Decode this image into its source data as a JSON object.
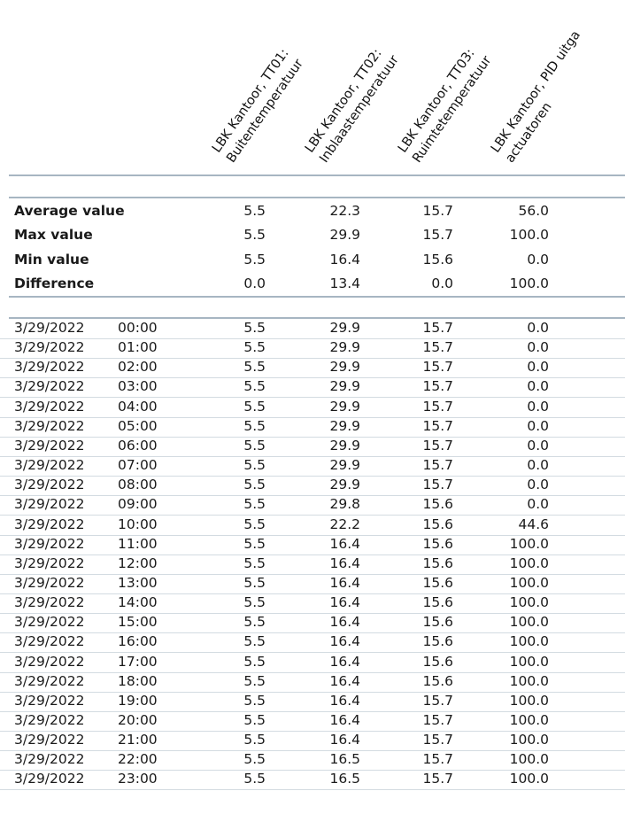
{
  "headers": [
    {
      "line1": "LBK Kantoor, TT01:",
      "line2": "Buitentemperatuur"
    },
    {
      "line1": "LBK Kantoor, TT02:",
      "line2": "Inblaastemperatuur"
    },
    {
      "line1": "LBK Kantoor, TT03:",
      "line2": "Ruimtetemperatuur"
    },
    {
      "line1": "LBK Kantoor, PID uitga",
      "line2": "actuatoren"
    }
  ],
  "summary": [
    {
      "label": "Average value",
      "values": [
        "5.5",
        "22.3",
        "15.7",
        "56.0"
      ]
    },
    {
      "label": "Max value",
      "values": [
        "5.5",
        "29.9",
        "15.7",
        "100.0"
      ]
    },
    {
      "label": "Min value",
      "values": [
        "5.5",
        "16.4",
        "15.6",
        "0.0"
      ]
    },
    {
      "label": "Difference",
      "values": [
        "0.0",
        "13.4",
        "0.0",
        "100.0"
      ]
    }
  ],
  "rows": [
    {
      "date": "3/29/2022",
      "time": "00:00",
      "values": [
        "5.5",
        "29.9",
        "15.7",
        "0.0"
      ]
    },
    {
      "date": "3/29/2022",
      "time": "01:00",
      "values": [
        "5.5",
        "29.9",
        "15.7",
        "0.0"
      ]
    },
    {
      "date": "3/29/2022",
      "time": "02:00",
      "values": [
        "5.5",
        "29.9",
        "15.7",
        "0.0"
      ]
    },
    {
      "date": "3/29/2022",
      "time": "03:00",
      "values": [
        "5.5",
        "29.9",
        "15.7",
        "0.0"
      ]
    },
    {
      "date": "3/29/2022",
      "time": "04:00",
      "values": [
        "5.5",
        "29.9",
        "15.7",
        "0.0"
      ]
    },
    {
      "date": "3/29/2022",
      "time": "05:00",
      "values": [
        "5.5",
        "29.9",
        "15.7",
        "0.0"
      ]
    },
    {
      "date": "3/29/2022",
      "time": "06:00",
      "values": [
        "5.5",
        "29.9",
        "15.7",
        "0.0"
      ]
    },
    {
      "date": "3/29/2022",
      "time": "07:00",
      "values": [
        "5.5",
        "29.9",
        "15.7",
        "0.0"
      ]
    },
    {
      "date": "3/29/2022",
      "time": "08:00",
      "values": [
        "5.5",
        "29.9",
        "15.7",
        "0.0"
      ]
    },
    {
      "date": "3/29/2022",
      "time": "09:00",
      "values": [
        "5.5",
        "29.8",
        "15.6",
        "0.0"
      ]
    },
    {
      "date": "3/29/2022",
      "time": "10:00",
      "values": [
        "5.5",
        "22.2",
        "15.6",
        "44.6"
      ]
    },
    {
      "date": "3/29/2022",
      "time": "11:00",
      "values": [
        "5.5",
        "16.4",
        "15.6",
        "100.0"
      ]
    },
    {
      "date": "3/29/2022",
      "time": "12:00",
      "values": [
        "5.5",
        "16.4",
        "15.6",
        "100.0"
      ]
    },
    {
      "date": "3/29/2022",
      "time": "13:00",
      "values": [
        "5.5",
        "16.4",
        "15.6",
        "100.0"
      ]
    },
    {
      "date": "3/29/2022",
      "time": "14:00",
      "values": [
        "5.5",
        "16.4",
        "15.6",
        "100.0"
      ]
    },
    {
      "date": "3/29/2022",
      "time": "15:00",
      "values": [
        "5.5",
        "16.4",
        "15.6",
        "100.0"
      ]
    },
    {
      "date": "3/29/2022",
      "time": "16:00",
      "values": [
        "5.5",
        "16.4",
        "15.6",
        "100.0"
      ]
    },
    {
      "date": "3/29/2022",
      "time": "17:00",
      "values": [
        "5.5",
        "16.4",
        "15.6",
        "100.0"
      ]
    },
    {
      "date": "3/29/2022",
      "time": "18:00",
      "values": [
        "5.5",
        "16.4",
        "15.6",
        "100.0"
      ]
    },
    {
      "date": "3/29/2022",
      "time": "19:00",
      "values": [
        "5.5",
        "16.4",
        "15.7",
        "100.0"
      ]
    },
    {
      "date": "3/29/2022",
      "time": "20:00",
      "values": [
        "5.5",
        "16.4",
        "15.7",
        "100.0"
      ]
    },
    {
      "date": "3/29/2022",
      "time": "21:00",
      "values": [
        "5.5",
        "16.4",
        "15.7",
        "100.0"
      ]
    },
    {
      "date": "3/29/2022",
      "time": "22:00",
      "values": [
        "5.5",
        "16.5",
        "15.7",
        "100.0"
      ]
    },
    {
      "date": "3/29/2022",
      "time": "23:00",
      "values": [
        "5.5",
        "16.5",
        "15.7",
        "100.0"
      ]
    }
  ]
}
